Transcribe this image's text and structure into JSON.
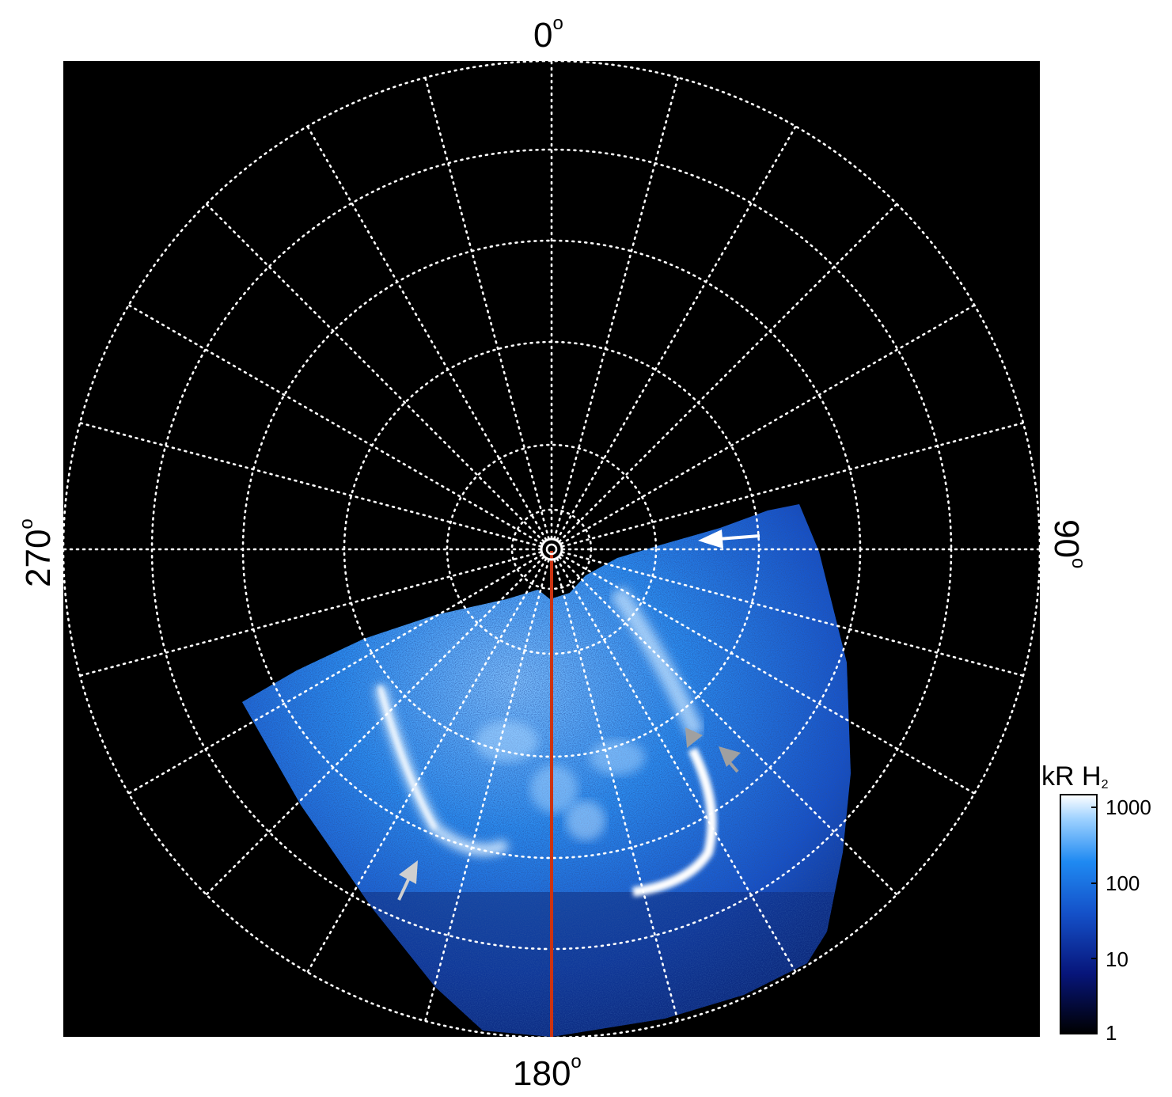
{
  "labels": {
    "top": "0",
    "bottom": "180",
    "left": "270",
    "right": "90",
    "degree_symbol": "o"
  },
  "colorbar": {
    "title": "kR H",
    "title_sub": "2",
    "ticks": [
      "1000",
      "100",
      "10",
      "1"
    ]
  },
  "colors": {
    "background": "#000000",
    "grid": "#ffffff",
    "meridian_line": "#cc3311",
    "aurora_dim": "#0a2a8a",
    "aurora_mid": "#1e78e6",
    "aurora_bright": "#9fd2ff",
    "arrow_white": "#ffffff",
    "arrow_gray": "#a0a0a0"
  },
  "icons": {
    "annotation_arrows": [
      "white-arrow-icon",
      "gray-arrow-icon",
      "gray-arrow-icon",
      "gray-arrow-icon"
    ]
  }
}
